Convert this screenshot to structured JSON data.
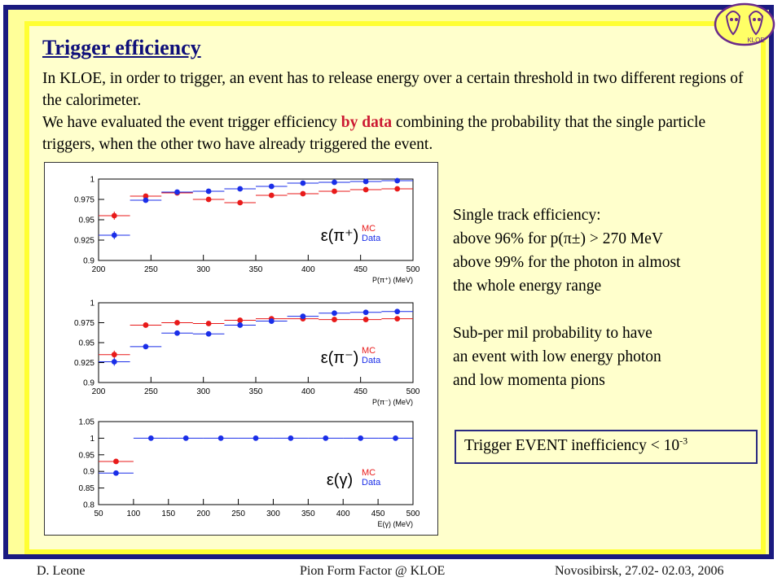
{
  "slide": {
    "title": "Trigger efficiency",
    "intro": {
      "p1": "In KLOE, in order to trigger, an event has to release energy over a certain threshold in two different regions of the calorimeter.",
      "p2_pre": "We have evaluated the event trigger efficiency ",
      "p2_highlight": "by data",
      "p2_post": " combining the probability that the single particle triggers, when the other two have already triggered the event."
    },
    "side_text": {
      "line1": "Single track efficiency:",
      "line2": "above 96% for p(π±) > 270 MeV",
      "line3": "above 99% for the photon in almost",
      "line4": "the whole energy range",
      "line5": "Sub-per mil probability to have",
      "line6": "an event with low energy photon",
      "line7": "and low momenta pions"
    },
    "result_box": {
      "text": "Trigger EVENT inefficiency < 10",
      "exponent": "-3"
    },
    "footer": {
      "left": "D. Leone",
      "center": "Pion Form Factor @ KLOE",
      "right": "Novosibirsk, 27.02- 02.03, 2006"
    },
    "logo": {
      "icon": "kloe-logo-icon",
      "text": "KLOE"
    }
  },
  "colors": {
    "mc": "#e81a1a",
    "data": "#1a2ee8",
    "title": "#10107a",
    "highlight": "#cc1a33"
  },
  "chart_data": [
    {
      "type": "scatter",
      "panel_label": "ε(π⁺)",
      "xlabel": "P(π⁺) (MeV)",
      "ylabel": "",
      "xlim": [
        200,
        500
      ],
      "ylim": [
        0.9,
        1.0
      ],
      "xticks": [
        200,
        250,
        300,
        350,
        400,
        450,
        500
      ],
      "xtick_labels": [
        "200",
        "250",
        "300",
        "350",
        "400",
        "450",
        "500"
      ],
      "yticks": [
        0.9,
        0.925,
        0.95,
        0.975,
        1.0
      ],
      "ytick_labels": [
        "0.9",
        "0.925",
        "0.95",
        "0.975",
        "1"
      ],
      "xerr": 15,
      "legend": [
        "MC",
        "Data"
      ],
      "series": [
        {
          "name": "MC",
          "color": "#e81a1a",
          "x": [
            215,
            245,
            275,
            305,
            335,
            365,
            395,
            425,
            455,
            485
          ],
          "y": [
            0.955,
            0.979,
            0.983,
            0.975,
            0.971,
            0.98,
            0.982,
            0.985,
            0.987,
            0.988
          ],
          "yerr": [
            0.005,
            0,
            0,
            0,
            0,
            0,
            0,
            0,
            0,
            0
          ]
        },
        {
          "name": "Data",
          "color": "#1a2ee8",
          "x": [
            215,
            245,
            275,
            305,
            335,
            365,
            395,
            425,
            455,
            485
          ],
          "y": [
            0.931,
            0.974,
            0.984,
            0.985,
            0.988,
            0.991,
            0.995,
            0.996,
            0.997,
            0.998
          ],
          "yerr": [
            0.005,
            0,
            0,
            0,
            0,
            0,
            0,
            0,
            0,
            0
          ]
        }
      ]
    },
    {
      "type": "scatter",
      "panel_label": "ε(π⁻)",
      "xlabel": "P(π⁻) (MeV)",
      "ylabel": "",
      "xlim": [
        200,
        500
      ],
      "ylim": [
        0.9,
        1.0
      ],
      "xticks": [
        200,
        250,
        300,
        350,
        400,
        450,
        500
      ],
      "xtick_labels": [
        "200",
        "250",
        "300",
        "350",
        "400",
        "450",
        "500"
      ],
      "yticks": [
        0.9,
        0.925,
        0.95,
        0.975,
        1.0
      ],
      "ytick_labels": [
        "0.9",
        "0.925",
        "0.95",
        "0.975",
        "1"
      ],
      "xerr": 15,
      "legend": [
        "MC",
        "Data"
      ],
      "series": [
        {
          "name": "MC",
          "color": "#e81a1a",
          "x": [
            215,
            245,
            275,
            305,
            335,
            365,
            395,
            425,
            455,
            485
          ],
          "y": [
            0.935,
            0.972,
            0.975,
            0.974,
            0.978,
            0.98,
            0.98,
            0.979,
            0.979,
            0.98
          ],
          "yerr": [
            0.005,
            0,
            0,
            0,
            0,
            0,
            0,
            0,
            0,
            0
          ]
        },
        {
          "name": "Data",
          "color": "#1a2ee8",
          "x": [
            215,
            245,
            275,
            305,
            335,
            365,
            395,
            425,
            455,
            485
          ],
          "y": [
            0.926,
            0.945,
            0.962,
            0.961,
            0.972,
            0.977,
            0.983,
            0.987,
            0.988,
            0.989
          ],
          "yerr": [
            0.005,
            0,
            0,
            0,
            0,
            0,
            0,
            0,
            0,
            0
          ]
        }
      ]
    },
    {
      "type": "scatter",
      "panel_label": "ε(γ)",
      "xlabel": "E(γ) (MeV)",
      "ylabel": "",
      "xlim": [
        50,
        500
      ],
      "ylim": [
        0.8,
        1.05
      ],
      "xticks": [
        50,
        100,
        150,
        200,
        250,
        300,
        350,
        400,
        450,
        500
      ],
      "xtick_labels": [
        "50",
        "100",
        "150",
        "200",
        "250",
        "300",
        "350",
        "400",
        "450",
        "500"
      ],
      "yticks": [
        0.8,
        0.85,
        0.9,
        0.95,
        1.0,
        1.05
      ],
      "ytick_labels": [
        "0.8",
        "0.85",
        "0.9",
        "0.95",
        "1",
        "1.05"
      ],
      "xerr": 25,
      "legend": [
        "MC",
        "Data"
      ],
      "series": [
        {
          "name": "MC",
          "color": "#e81a1a",
          "x": [
            75
          ],
          "y": [
            0.93
          ],
          "yerr": [
            0
          ]
        },
        {
          "name": "Data",
          "color": "#1a2ee8",
          "x": [
            75,
            125,
            175,
            225,
            275,
            325,
            375,
            425,
            475
          ],
          "y": [
            0.895,
            1.0,
            1.0,
            1.0,
            1.0,
            1.0,
            1.0,
            1.0,
            1.0
          ],
          "yerr": [
            0,
            0,
            0,
            0,
            0,
            0,
            0,
            0,
            0
          ]
        }
      ]
    }
  ]
}
